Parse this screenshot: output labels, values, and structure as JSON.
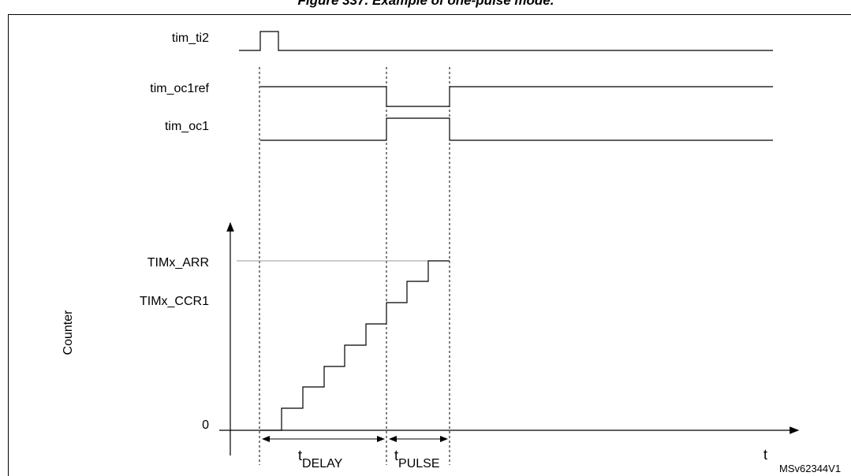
{
  "header": {
    "title": "Figure 337. Example of one-pulse mode."
  },
  "signals": [
    "tim_ti2",
    "tim_oc1ref",
    "tim_oc1"
  ],
  "counter": {
    "axis_label": "Counter",
    "levels": [
      "TIMx_ARR",
      "TIMx_CCR1",
      "0"
    ]
  },
  "intervals": [
    {
      "main": "t",
      "sub": "DELAY"
    },
    {
      "main": "t",
      "sub": "PULSE"
    }
  ],
  "time_label": "t",
  "figure_id": "MSv62344V1"
}
